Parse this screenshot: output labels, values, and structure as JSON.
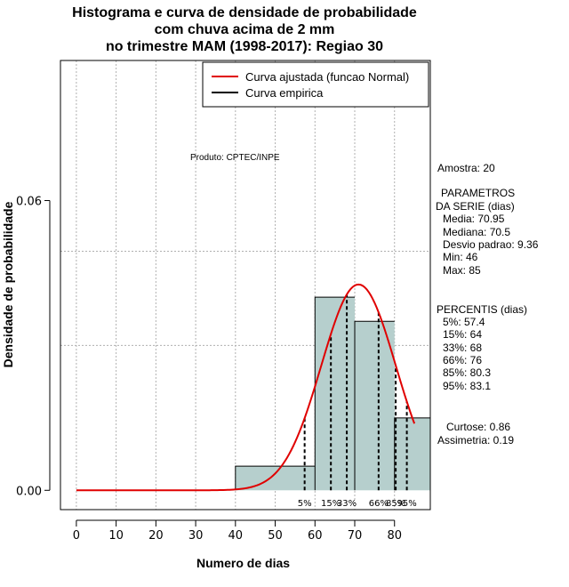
{
  "title_lines": [
    "Histograma e curva de densidade de probabilidade",
    "com chuva acima de 2 mm",
    "no trimestre MAM (1998-2017): Regiao 30"
  ],
  "xlabel": "Numero de dias",
  "ylabel": "Densidade de probabilidade",
  "product_note": "Produto: CPTEC/INPE",
  "legend": {
    "fitted": "Curva ajustada (funcao Normal)",
    "empirical": "Curva empirica"
  },
  "stats": {
    "sample": "Amostra: 20",
    "params_header_1": "PARAMETROS",
    "params_header_2": "DA SERIE (dias)",
    "mean": "Media: 70.95",
    "median": "Mediana: 70.5",
    "sd": "Desvio padrao: 9.36",
    "min": "Min: 46",
    "max": "Max: 85",
    "percentis_header": "PERCENTIS (dias)",
    "p5": "5%: 57.4",
    "p15": "15%: 64",
    "p33": "33%: 68",
    "p66": "66%: 76",
    "p85": "85%: 80.3",
    "p95": "95%: 83.1",
    "kurtosis": "Curtose: 0.86",
    "skewness": "Assimetria: 0.19"
  },
  "colors": {
    "bar_fill": "#b6cfcd",
    "fitted_curve": "#e00000",
    "grid": "#b0b0b0"
  },
  "chart_data": {
    "type": "histogram",
    "xlim": [
      -4,
      89
    ],
    "ylim": [
      -0.004,
      0.089
    ],
    "x_ticks": [
      0,
      10,
      20,
      30,
      40,
      50,
      60,
      70,
      80
    ],
    "y_ticks": [
      0.0,
      0.06
    ],
    "y_tick_labels": [
      "0.00",
      "0.06"
    ],
    "bins": [
      {
        "start": 40,
        "end": 60,
        "density": 0.005
      },
      {
        "start": 60,
        "end": 70,
        "density": 0.04
      },
      {
        "start": 70,
        "end": 80,
        "density": 0.035
      },
      {
        "start": 80,
        "end": 90,
        "density": 0.015
      }
    ],
    "fitted_normal": {
      "mean": 70.95,
      "sd": 9.36,
      "x_from": 0,
      "x_to": 85
    },
    "percentiles": [
      {
        "label": "5%",
        "value": 57.4
      },
      {
        "label": "15%",
        "value": 64
      },
      {
        "label": "33%",
        "value": 68
      },
      {
        "label": "66%",
        "value": 76
      },
      {
        "label": "85%",
        "value": 80.3
      },
      {
        "label": "95%",
        "value": 83.1
      }
    ],
    "grid": true,
    "legend_position": "top-right"
  }
}
